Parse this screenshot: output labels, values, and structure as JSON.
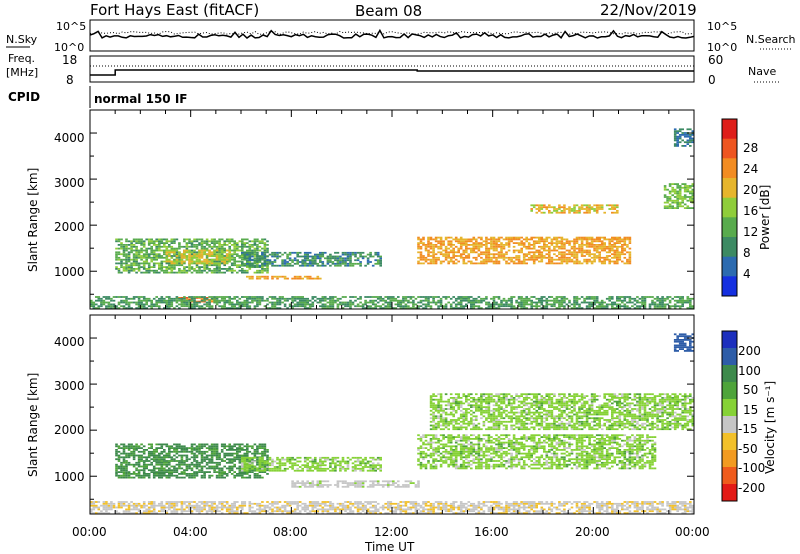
{
  "header": {
    "station": "Fort Hays East (fitACF)",
    "beam": "Beam 08",
    "date": "22/Nov/2019"
  },
  "noise_panel": {
    "left_label": "N.Sky",
    "right_label": "N.Search",
    "left_top": "10^5",
    "left_bottom": "10^0",
    "right_top": "10^5",
    "right_bottom": "10^0"
  },
  "freq_panel": {
    "left_label_1": "Freq.",
    "left_label_2": "[MHz]",
    "right_label": "Nave",
    "left_top": "18",
    "left_bottom": "8",
    "right_top": "60",
    "right_bottom": "0"
  },
  "cpid_panel": {
    "label": "CPID",
    "value": "normal 150 IF"
  },
  "axes": {
    "y_title": "Slant Range [km]",
    "x_title": "Time UT",
    "x_ticks": [
      "00:00",
      "04:00",
      "08:00",
      "12:00",
      "16:00",
      "20:00",
      "00:00"
    ],
    "y_ticks": [
      "1000",
      "2000",
      "3000",
      "4000"
    ]
  },
  "power_scale": {
    "title": "Power [dB]",
    "labels": [
      "4",
      "8",
      "12",
      "16",
      "20",
      "24",
      "28"
    ],
    "colors": [
      "#1530e0",
      "#2c6bb0",
      "#3c8a63",
      "#58ab4d",
      "#8fcd3a",
      "#e6b52c",
      "#f28c22",
      "#ee5520",
      "#de1e1a"
    ]
  },
  "velocity_scale": {
    "title": "Velocity [m s⁻¹]",
    "labels": [
      "200",
      "100",
      "50",
      "15",
      "-15",
      "-50",
      "-100",
      "-200"
    ],
    "colors": [
      "#1c2fbd",
      "#2e5da8",
      "#3d8a4b",
      "#4ea43a",
      "#86d236",
      "#c6c6c6",
      "#f2c02a",
      "#f29b21",
      "#ef5b1c",
      "#e31a16"
    ]
  },
  "chart_data": [
    {
      "type": "heatmap",
      "title": "Power",
      "xlabel": "Time UT",
      "ylabel": "Slant Range [km]",
      "xlim_hours": [
        0,
        24
      ],
      "ylim_km": [
        180,
        4500
      ],
      "colorbar_label": "Power [dB]",
      "regions": [
        {
          "t": [
            1.0,
            7.0
          ],
          "r": [
            950,
            1700
          ],
          "value_db": 14
        },
        {
          "t": [
            3.0,
            5.5
          ],
          "r": [
            1150,
            1450
          ],
          "value_db": 20
        },
        {
          "t": [
            6.2,
            9.2
          ],
          "r": [
            820,
            880
          ],
          "value_db": 24
        },
        {
          "t": [
            6.0,
            11.5
          ],
          "r": [
            1100,
            1400
          ],
          "value_db": 10
        },
        {
          "t": [
            3.5,
            5.0
          ],
          "r": [
            320,
            420
          ],
          "value_db": 26
        },
        {
          "t": [
            0.0,
            24.0
          ],
          "r": [
            180,
            450
          ],
          "value_db": 12
        },
        {
          "t": [
            13.0,
            21.5
          ],
          "r": [
            1150,
            1750
          ],
          "value_db": 24
        },
        {
          "t": [
            17.5,
            21.0
          ],
          "r": [
            2250,
            2450
          ],
          "value_db": 22
        },
        {
          "t": [
            22.8,
            24.0
          ],
          "r": [
            2350,
            2900
          ],
          "value_db": 16
        },
        {
          "t": [
            23.2,
            24.0
          ],
          "r": [
            3700,
            4100
          ],
          "value_db": 8
        }
      ]
    },
    {
      "type": "heatmap",
      "title": "Velocity",
      "xlabel": "Time UT",
      "ylabel": "Slant Range [km]",
      "xlim_hours": [
        0,
        24
      ],
      "ylim_km": [
        180,
        4500
      ],
      "colorbar_label": "Velocity [m s⁻¹]",
      "regions": [
        {
          "t": [
            1.0,
            7.0
          ],
          "r": [
            950,
            1700
          ],
          "value_ms": 60
        },
        {
          "t": [
            6.0,
            11.5
          ],
          "r": [
            1100,
            1400
          ],
          "value_ms": 0
        },
        {
          "t": [
            8.0,
            13.0
          ],
          "r": [
            750,
            900
          ],
          "value_ms": -30
        },
        {
          "t": [
            0.0,
            24.0
          ],
          "r": [
            180,
            450
          ],
          "value_ms": -40
        },
        {
          "t": [
            13.0,
            22.5
          ],
          "r": [
            1150,
            1900
          ],
          "value_ms": 0
        },
        {
          "t": [
            13.5,
            24.0
          ],
          "r": [
            2000,
            2800
          ],
          "value_ms": 0
        },
        {
          "t": [
            23.2,
            24.0
          ],
          "r": [
            3700,
            4100
          ],
          "value_ms": 150
        }
      ]
    }
  ]
}
